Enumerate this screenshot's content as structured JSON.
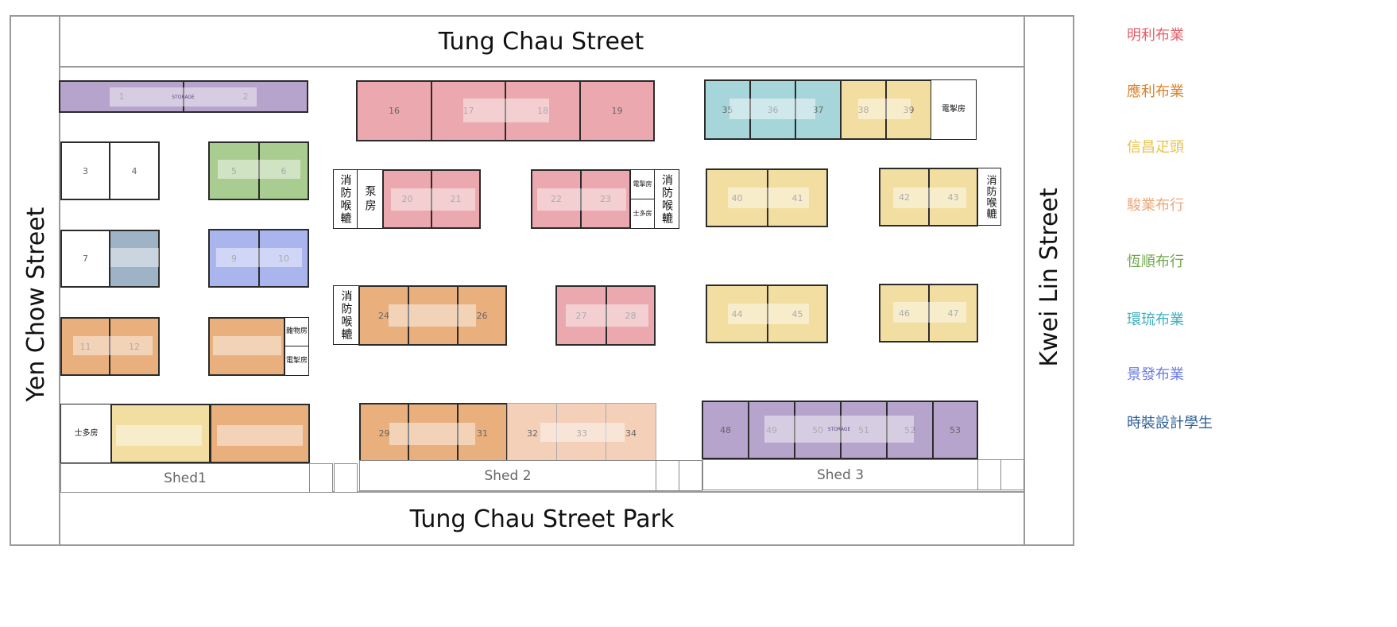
{
  "streets": {
    "north": "Tung Chau Street",
    "south": "Tung Chau Street Park",
    "west": "Yen Chow Street",
    "east": "Kwei Lin Street"
  },
  "sheds": [
    "Shed1",
    "Shed 2",
    "Shed 3"
  ],
  "legend": [
    {
      "name": "明利布業",
      "color": "#e0606a"
    },
    {
      "name": "應利布業",
      "color": "#d9822b"
    },
    {
      "name": "信昌疋頭",
      "color": "#e6c34a"
    },
    {
      "name": "駿業布行",
      "color": "#eba77a"
    },
    {
      "name": "恆順布行",
      "color": "#6fa54a"
    },
    {
      "name": "環琉布業",
      "color": "#3fb0bf"
    },
    {
      "name": "景發布業",
      "color": "#6a7be0"
    },
    {
      "name": "時裝設計學生",
      "color": "#2e5f93"
    }
  ],
  "stall_numbers": {
    "s1": "1",
    "s2": "2",
    "s3": "3",
    "s4": "4",
    "s5": "5",
    "s6": "6",
    "s7": "7",
    "s9": "9",
    "s10": "10",
    "s11": "11",
    "s12": "12",
    "s16": "16",
    "s17": "17",
    "s18": "18",
    "s19": "19",
    "s20": "20",
    "s21": "21",
    "s22": "22",
    "s23": "23",
    "s24": "24",
    "s26": "26",
    "s27": "27",
    "s28": "28",
    "s29": "29",
    "s31": "31",
    "s32": "32",
    "s33": "33",
    "s34": "34",
    "s35": "35",
    "s36": "36",
    "s37": "37",
    "s38": "38",
    "s39": "39",
    "s40": "40",
    "s41": "41",
    "s42": "42",
    "s43": "43",
    "s44": "44",
    "s45": "45",
    "s46": "46",
    "s47": "47",
    "s48": "48",
    "s49": "49",
    "s50": "50",
    "s51": "51",
    "s52": "52",
    "s53": "53"
  },
  "tags": {
    "storage": "STORAGE"
  },
  "rooms": {
    "fire_hose": "消防喉轆",
    "pump_room": "泵房",
    "electric_room": "電掣房",
    "shiduo_room": "士多房",
    "storage_room": "雜物房"
  }
}
